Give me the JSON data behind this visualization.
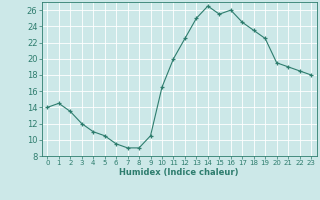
{
  "x": [
    0,
    1,
    2,
    3,
    4,
    5,
    6,
    7,
    8,
    9,
    10,
    11,
    12,
    13,
    14,
    15,
    16,
    17,
    18,
    19,
    20,
    21,
    22,
    23
  ],
  "y": [
    14,
    14.5,
    13.5,
    12,
    11,
    10.5,
    9.5,
    9,
    9,
    10.5,
    16.5,
    20,
    22.5,
    25,
    26.5,
    25.5,
    26,
    24.5,
    23.5,
    22.5,
    19.5,
    19,
    18.5,
    18
  ],
  "xlabel": "Humidex (Indice chaleur)",
  "ylim": [
    8,
    27
  ],
  "xlim": [
    -0.5,
    23.5
  ],
  "yticks": [
    8,
    10,
    12,
    14,
    16,
    18,
    20,
    22,
    24,
    26
  ],
  "xticks": [
    0,
    1,
    2,
    3,
    4,
    5,
    6,
    7,
    8,
    9,
    10,
    11,
    12,
    13,
    14,
    15,
    16,
    17,
    18,
    19,
    20,
    21,
    22,
    23
  ],
  "line_color": "#2e7d6e",
  "marker": "+",
  "bg_color": "#cce8e8",
  "grid_color": "#ffffff",
  "text_color": "#2e7d6e",
  "spine_color": "#2e7d6e"
}
